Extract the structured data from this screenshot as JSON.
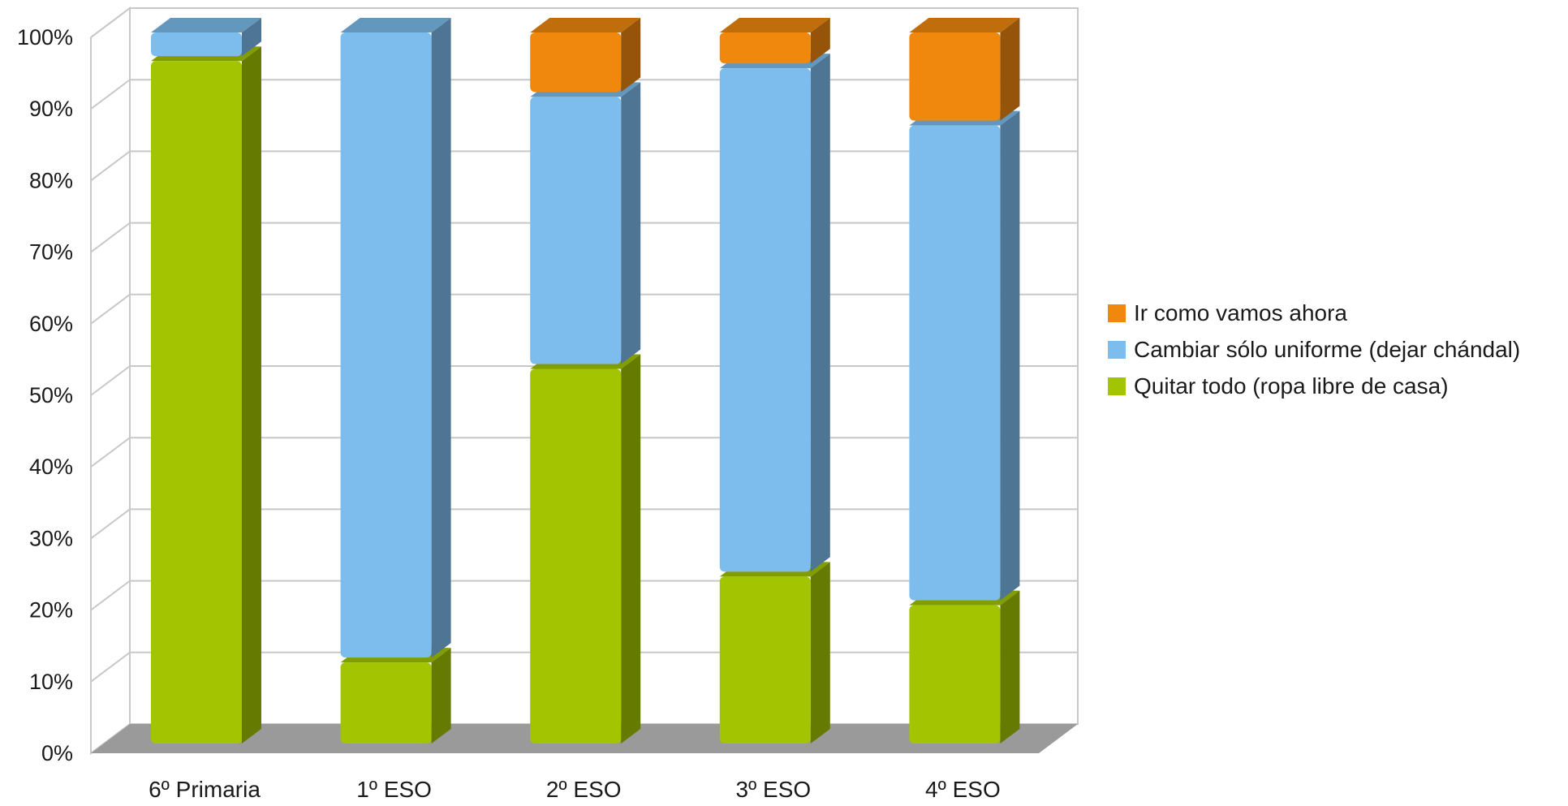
{
  "chart_data": {
    "type": "bar",
    "stacked": true,
    "three_d": true,
    "categories": [
      "6º Primaria",
      "1º ESO",
      "2º ESO",
      "3º ESO",
      "4º ESO"
    ],
    "series": [
      {
        "name": "Quitar todo (ropa libre de casa)",
        "values": [
          96,
          12,
          53,
          24,
          20
        ],
        "color": "#a3c400"
      },
      {
        "name": "Cambiar sólo uniforme (dejar chándal)",
        "values": [
          4,
          88,
          38,
          71,
          67
        ],
        "color": "#7dbdee"
      },
      {
        "name": "Ir como vamos ahora",
        "values": [
          0,
          0,
          9,
          5,
          13
        ],
        "color": "#f0880e"
      }
    ],
    "ylim": [
      0,
      100
    ],
    "yticks": [
      "0%",
      "10%",
      "20%",
      "30%",
      "40%",
      "50%",
      "60%",
      "70%",
      "80%",
      "90%",
      "100%"
    ],
    "legend_position": "right",
    "grid": true
  }
}
